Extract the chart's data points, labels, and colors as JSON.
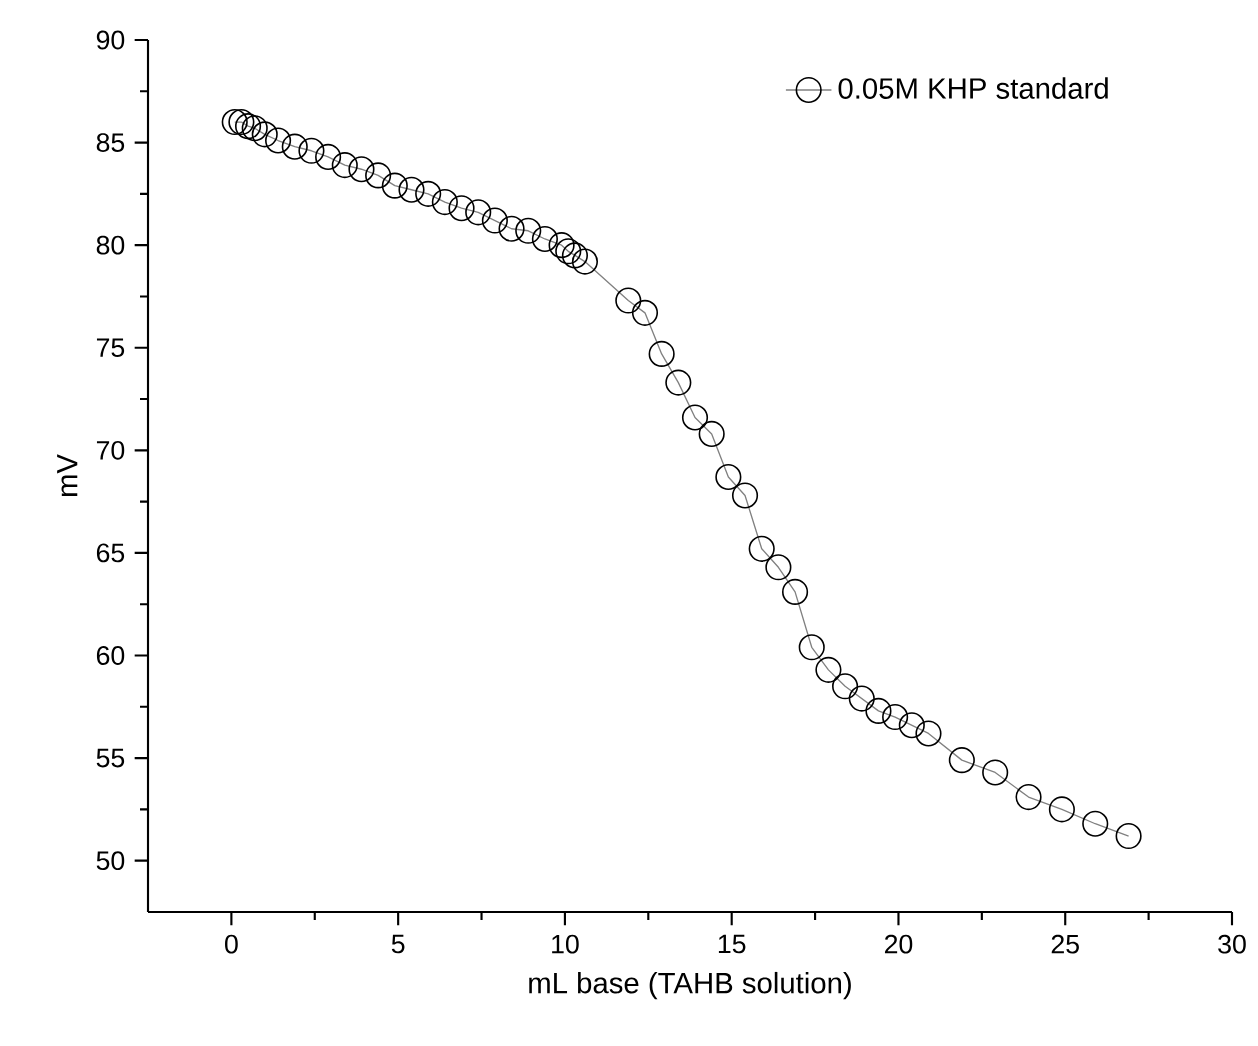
{
  "chart_data": {
    "type": "line",
    "xlabel": "mL base (TAHB solution)",
    "ylabel": "mV",
    "series": [
      {
        "name": "0.05M KHP standard",
        "color": "#000000",
        "x": [
          0.1,
          0.3,
          0.5,
          0.7,
          1.0,
          1.4,
          1.9,
          2.4,
          2.9,
          3.4,
          3.9,
          4.4,
          4.9,
          5.4,
          5.9,
          6.4,
          6.9,
          7.4,
          7.9,
          8.4,
          8.9,
          9.4,
          9.9,
          10.1,
          10.3,
          10.6,
          11.9,
          12.4,
          12.9,
          13.4,
          13.9,
          14.4,
          14.9,
          15.4,
          15.9,
          16.4,
          16.9,
          17.4,
          17.9,
          18.4,
          18.9,
          19.4,
          19.9,
          20.4,
          20.9,
          21.9,
          22.9,
          23.9,
          24.9,
          25.9,
          26.9
        ],
        "values": [
          86.0,
          86.0,
          85.8,
          85.7,
          85.4,
          85.1,
          84.8,
          84.6,
          84.3,
          83.9,
          83.7,
          83.4,
          82.9,
          82.7,
          82.5,
          82.1,
          81.8,
          81.6,
          81.2,
          80.8,
          80.7,
          80.3,
          80.0,
          79.7,
          79.5,
          79.2,
          77.3,
          76.7,
          74.7,
          73.3,
          71.6,
          70.8,
          68.7,
          67.8,
          65.2,
          64.3,
          63.1,
          60.4,
          59.3,
          58.5,
          57.9,
          57.3,
          57.0,
          56.6,
          56.2,
          54.9,
          54.3,
          53.1,
          52.5,
          51.8,
          51.2
        ]
      }
    ],
    "xlim": [
      -2.5,
      30
    ],
    "ylim": [
      47.5,
      90
    ],
    "xticks": [
      0,
      5,
      10,
      15,
      20,
      25,
      30
    ],
    "yticks": [
      50,
      55,
      60,
      65,
      70,
      75,
      80,
      85,
      90
    ],
    "grid": false,
    "legend": "top right",
    "marker": "circle",
    "line_style": "solid"
  }
}
